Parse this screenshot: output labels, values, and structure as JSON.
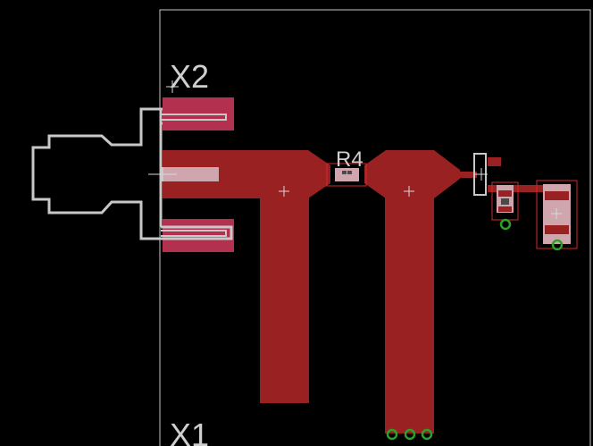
{
  "labels": {
    "x2": "X2",
    "r4": "R4",
    "x1": "X1"
  },
  "colors": {
    "background": "#000000",
    "trace": "#9a2121",
    "pad_top_layer": "#b3304f",
    "outline": "#c8c8c8",
    "board_edge": "#c8c8c8",
    "via": "#2aa12a",
    "silk_box": "#d32a2a",
    "origin_cross": "#d8d8d8",
    "pad_light": "#cfa6ad"
  },
  "icons": {
    "origin": "plus-cross-icon",
    "via": "ring-icon"
  }
}
